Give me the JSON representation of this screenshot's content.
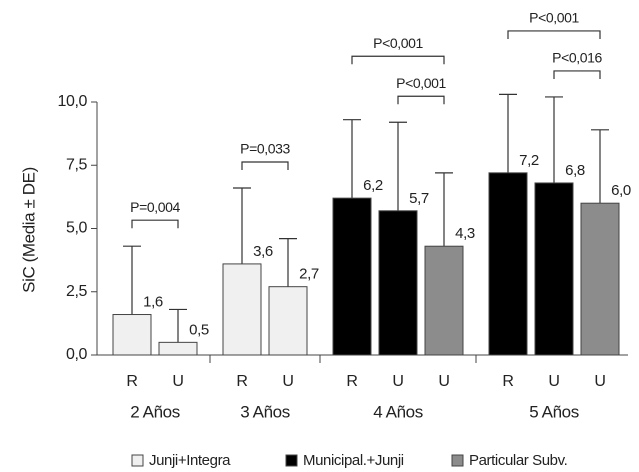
{
  "chart_data": {
    "type": "bar",
    "y_label": "SiC (Media ± DE)",
    "ylim": [
      0,
      10
    ],
    "yticks": [
      {
        "value": 0,
        "label": "0,0"
      },
      {
        "value": 2.5,
        "label": "2,5"
      },
      {
        "value": 5,
        "label": "5,0"
      },
      {
        "value": 7.5,
        "label": "7,5"
      },
      {
        "value": 10,
        "label": "10,0"
      }
    ],
    "series": [
      {
        "name": "Junji+Integra",
        "color": "#f0f0f0"
      },
      {
        "name": "Municipal.+Junji",
        "color": "#000000"
      },
      {
        "name": "Particular Subv.",
        "color": "#8c8c8c"
      }
    ],
    "groups": [
      {
        "label": "2 Años",
        "bars": [
          {
            "category": "R",
            "series": 0,
            "value": 1.6,
            "value_label": "1,6",
            "error": 2.7
          },
          {
            "category": "U",
            "series": 0,
            "value": 0.5,
            "value_label": "0,5",
            "error": 1.3
          }
        ],
        "brackets": [
          {
            "label": "P=0,004",
            "from": 0,
            "to": 1
          }
        ]
      },
      {
        "label": "3 Años",
        "bars": [
          {
            "category": "R",
            "series": 0,
            "value": 3.6,
            "value_label": "3,6",
            "error": 3.0
          },
          {
            "category": "U",
            "series": 0,
            "value": 2.7,
            "value_label": "2,7",
            "error": 1.9
          }
        ],
        "brackets": [
          {
            "label": "P=0,033",
            "from": 0,
            "to": 1
          }
        ]
      },
      {
        "label": "4 Años",
        "bars": [
          {
            "category": "R",
            "series": 1,
            "value": 6.2,
            "value_label": "6,2",
            "error": 3.1
          },
          {
            "category": "U",
            "series": 1,
            "value": 5.7,
            "value_label": "5,7",
            "error": 3.5
          },
          {
            "category": "U",
            "series": 2,
            "value": 4.3,
            "value_label": "4,3",
            "error": 2.9
          }
        ],
        "brackets": [
          {
            "label": "P<0,001",
            "from": 1,
            "to": 2
          },
          {
            "label": "P<0,001",
            "from": 0,
            "to": 2
          }
        ]
      },
      {
        "label": "5 Años",
        "bars": [
          {
            "category": "R",
            "series": 1,
            "value": 7.2,
            "value_label": "7,2",
            "error": 3.1
          },
          {
            "category": "U",
            "series": 1,
            "value": 6.8,
            "value_label": "6,8",
            "error": 3.4
          },
          {
            "category": "U",
            "series": 2,
            "value": 6.0,
            "value_label": "6,0",
            "error": 2.9
          }
        ],
        "brackets": [
          {
            "label": "P<0,016",
            "from": 1,
            "to": 2
          },
          {
            "label": "P<0,001",
            "from": 0,
            "to": 2
          }
        ]
      }
    ]
  }
}
